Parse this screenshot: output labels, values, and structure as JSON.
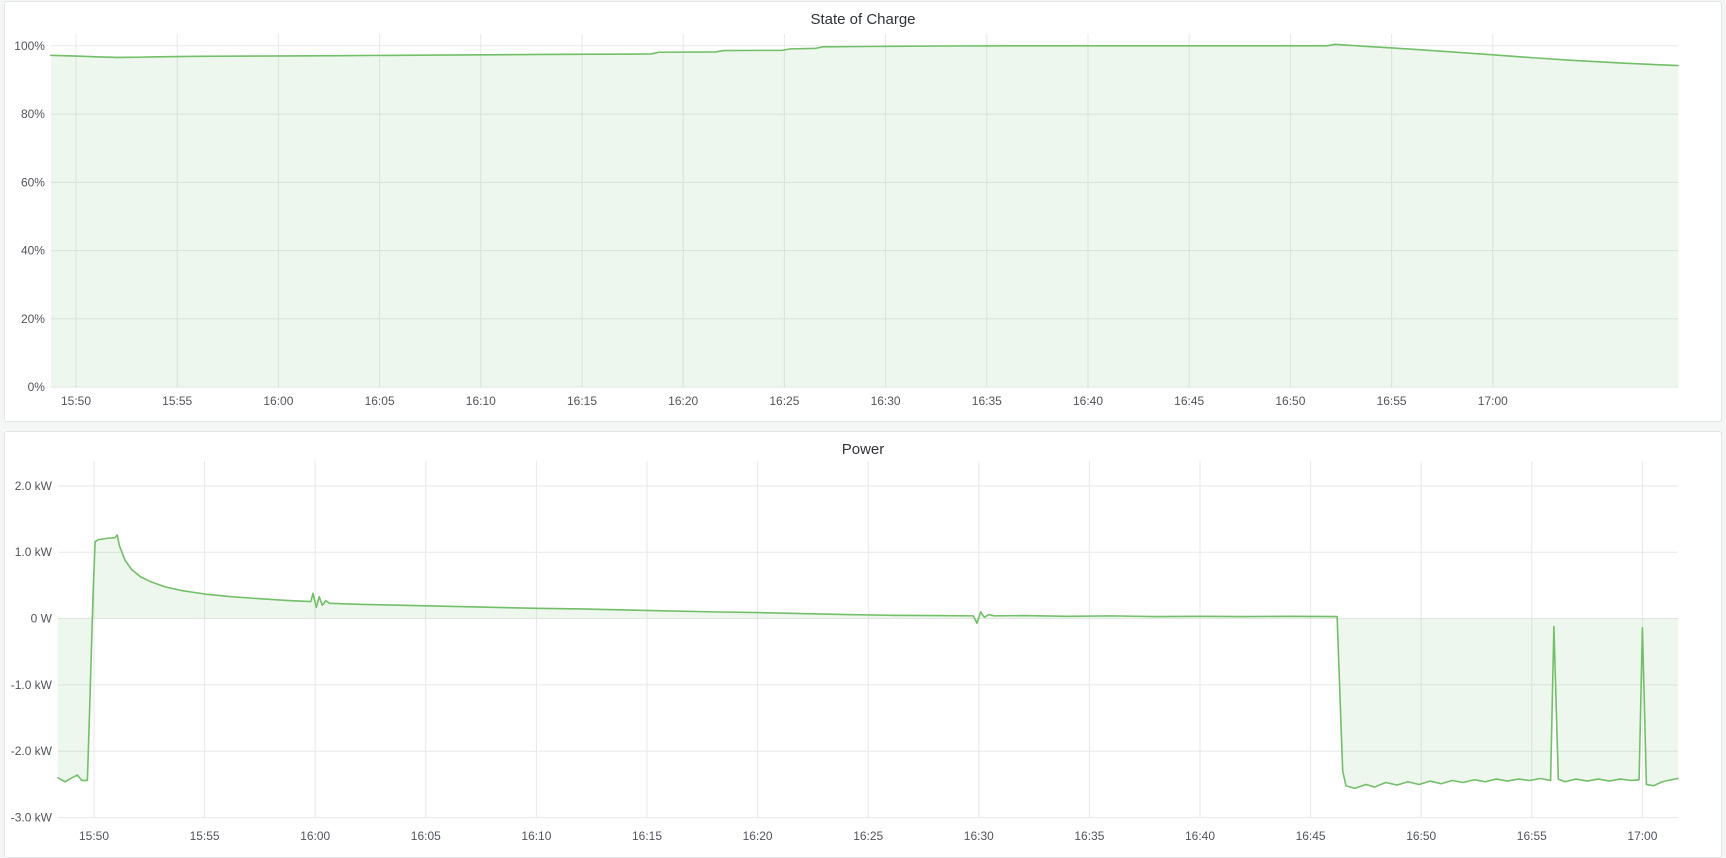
{
  "colors": {
    "page_bg": "#f4f5f5",
    "panel_bg": "#ffffff",
    "panel_border": "#e4e5e7",
    "grid": "#e7e8ea",
    "axis_text": "#52545c",
    "title_text": "#303338",
    "series_green": "#73bf69"
  },
  "chart_data": [
    {
      "type": "area",
      "title": "State of Charge",
      "unit": "percent",
      "legend": "none",
      "grid": "on",
      "line_color": "#73bf69",
      "fill_opacity": 0.12,
      "ylim": [
        0,
        100
      ],
      "y_tick_labels": [
        "100%",
        "80%",
        "60%",
        "40%",
        "20%",
        "0%"
      ],
      "y_tick_values": [
        100,
        80,
        60,
        40,
        20,
        0
      ],
      "x_tick_labels": [
        "15:50",
        "15:55",
        "16:00",
        "16:05",
        "16:10",
        "16:15",
        "16:20",
        "16:25",
        "16:30",
        "16:35",
        "16:40",
        "16:45",
        "16:50",
        "16:55",
        "17:00"
      ],
      "x_tick_minutes": [
        0,
        5,
        10,
        15,
        20,
        25,
        30,
        35,
        40,
        45,
        50,
        55,
        60,
        65,
        70
      ],
      "x_range_minutes": [
        -1.24,
        79.15
      ],
      "baseline": 0,
      "series": [
        {
          "points": [
            [
              -1.24,
              97.2
            ],
            [
              0,
              97.0
            ],
            [
              1,
              96.75
            ],
            [
              2,
              96.6
            ],
            [
              3,
              96.65
            ],
            [
              4,
              96.75
            ],
            [
              6,
              96.9
            ],
            [
              9,
              97.0
            ],
            [
              13,
              97.1
            ],
            [
              18,
              97.3
            ],
            [
              23,
              97.45
            ],
            [
              28.4,
              97.6
            ],
            [
              28.8,
              98.1
            ],
            [
              31.6,
              98.2
            ],
            [
              32.0,
              98.6
            ],
            [
              34.9,
              98.7
            ],
            [
              35.3,
              99.1
            ],
            [
              36.5,
              99.2
            ],
            [
              36.9,
              99.7
            ],
            [
              39,
              99.8
            ],
            [
              43,
              99.95
            ],
            [
              48,
              100.0
            ],
            [
              61.8,
              100.0
            ],
            [
              62.2,
              100.45
            ],
            [
              63.5,
              99.9
            ],
            [
              66,
              99.0
            ],
            [
              68,
              98.2
            ],
            [
              70,
              97.35
            ],
            [
              72,
              96.5
            ],
            [
              74,
              95.7
            ],
            [
              76.5,
              94.9
            ],
            [
              79.15,
              94.2
            ]
          ]
        }
      ]
    },
    {
      "type": "area",
      "title": "Power",
      "unit": "kW",
      "legend": "none",
      "grid": "on",
      "line_color": "#73bf69",
      "fill_opacity": 0.12,
      "ylim": [
        -3,
        2
      ],
      "y_tick_labels": [
        "2.0 kW",
        "1.0 kW",
        "0 W",
        "-1.0 kW",
        "-2.0 kW",
        "-3.0 kW"
      ],
      "y_tick_values": [
        2,
        1,
        0,
        -1,
        -2,
        -3
      ],
      "x_tick_labels": [
        "15:50",
        "15:55",
        "16:00",
        "16:05",
        "16:10",
        "16:15",
        "16:20",
        "16:25",
        "16:30",
        "16:35",
        "16:40",
        "16:45",
        "16:50",
        "16:55",
        "17:00"
      ],
      "x_tick_minutes": [
        0,
        5,
        10,
        15,
        20,
        25,
        30,
        35,
        40,
        45,
        50,
        55,
        60,
        65,
        70
      ],
      "x_range_minutes": [
        -1.63,
        71.6
      ],
      "baseline": 0,
      "series": [
        {
          "points": [
            [
              -1.63,
              -2.4
            ],
            [
              -1.3,
              -2.46
            ],
            [
              -1.0,
              -2.4
            ],
            [
              -0.75,
              -2.36
            ],
            [
              -0.55,
              -2.44
            ],
            [
              -0.3,
              -2.44
            ],
            [
              -0.18,
              -1.2
            ],
            [
              -0.05,
              0.3
            ],
            [
              0.05,
              1.16
            ],
            [
              0.2,
              1.19
            ],
            [
              0.6,
              1.21
            ],
            [
              0.95,
              1.22
            ],
            [
              1.05,
              1.26
            ],
            [
              1.15,
              1.1
            ],
            [
              1.4,
              0.88
            ],
            [
              1.7,
              0.74
            ],
            [
              2.1,
              0.63
            ],
            [
              2.6,
              0.55
            ],
            [
              3.2,
              0.48
            ],
            [
              4.0,
              0.42
            ],
            [
              5.0,
              0.37
            ],
            [
              6.2,
              0.33
            ],
            [
              7.5,
              0.3
            ],
            [
              8.8,
              0.27
            ],
            [
              9.8,
              0.255
            ],
            [
              9.9,
              0.38
            ],
            [
              10.05,
              0.17
            ],
            [
              10.18,
              0.33
            ],
            [
              10.32,
              0.2
            ],
            [
              10.48,
              0.27
            ],
            [
              10.65,
              0.23
            ],
            [
              12,
              0.215
            ],
            [
              14,
              0.2
            ],
            [
              16,
              0.185
            ],
            [
              18,
              0.17
            ],
            [
              20,
              0.155
            ],
            [
              22,
              0.145
            ],
            [
              24,
              0.13
            ],
            [
              26,
              0.115
            ],
            [
              28,
              0.1
            ],
            [
              30,
              0.09
            ],
            [
              32,
              0.075
            ],
            [
              34,
              0.06
            ],
            [
              36,
              0.05
            ],
            [
              38,
              0.045
            ],
            [
              39.75,
              0.04
            ],
            [
              39.92,
              -0.07
            ],
            [
              40.08,
              0.1
            ],
            [
              40.25,
              0.02
            ],
            [
              40.45,
              0.06
            ],
            [
              40.7,
              0.04
            ],
            [
              42,
              0.045
            ],
            [
              44,
              0.035
            ],
            [
              46,
              0.04
            ],
            [
              48,
              0.03
            ],
            [
              50,
              0.035
            ],
            [
              52,
              0.03
            ],
            [
              54,
              0.035
            ],
            [
              56.2,
              0.03
            ],
            [
              56.45,
              -2.3
            ],
            [
              56.6,
              -2.52
            ],
            [
              57.0,
              -2.56
            ],
            [
              57.5,
              -2.5
            ],
            [
              57.9,
              -2.54
            ],
            [
              58.4,
              -2.47
            ],
            [
              58.9,
              -2.51
            ],
            [
              59.4,
              -2.46
            ],
            [
              59.9,
              -2.5
            ],
            [
              60.4,
              -2.45
            ],
            [
              60.9,
              -2.49
            ],
            [
              61.4,
              -2.44
            ],
            [
              61.9,
              -2.47
            ],
            [
              62.4,
              -2.43
            ],
            [
              62.9,
              -2.46
            ],
            [
              63.4,
              -2.42
            ],
            [
              63.9,
              -2.45
            ],
            [
              64.4,
              -2.42
            ],
            [
              64.9,
              -2.44
            ],
            [
              65.4,
              -2.41
            ],
            [
              65.85,
              -2.44
            ],
            [
              66.0,
              -0.12
            ],
            [
              66.2,
              -2.42
            ],
            [
              66.5,
              -2.46
            ],
            [
              67.0,
              -2.42
            ],
            [
              67.5,
              -2.45
            ],
            [
              68.0,
              -2.42
            ],
            [
              68.5,
              -2.45
            ],
            [
              69.0,
              -2.42
            ],
            [
              69.5,
              -2.44
            ],
            [
              69.85,
              -2.43
            ],
            [
              70.0,
              -0.14
            ],
            [
              70.18,
              -2.5
            ],
            [
              70.5,
              -2.52
            ],
            [
              70.9,
              -2.46
            ],
            [
              71.3,
              -2.43
            ],
            [
              71.6,
              -2.41
            ]
          ]
        }
      ]
    }
  ]
}
